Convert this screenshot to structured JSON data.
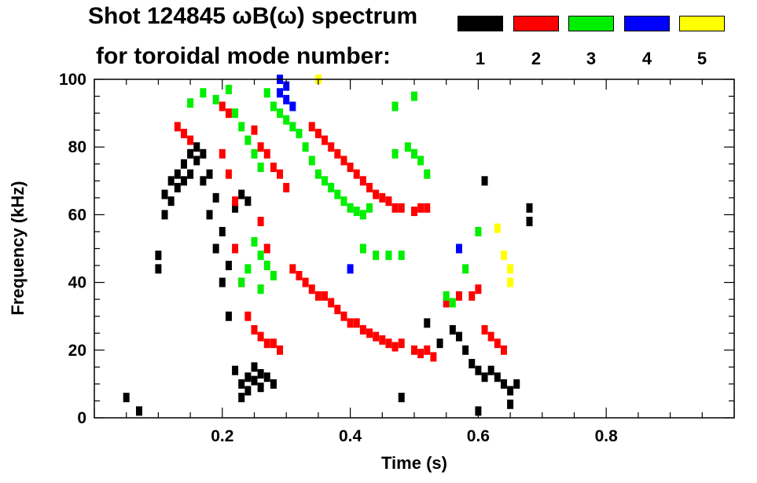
{
  "title": {
    "line1": "Shot 124845 ωB(ω) spectrum",
    "line2": "for toroidal mode number:"
  },
  "legend": [
    {
      "label": "1",
      "color": "#000000"
    },
    {
      "label": "2",
      "color": "#ff0000"
    },
    {
      "label": "3",
      "color": "#00ee00"
    },
    {
      "label": "4",
      "color": "#0000ff"
    },
    {
      "label": "5",
      "color": "#ffff00"
    }
  ],
  "chart_data": {
    "type": "scatter",
    "title": "Shot 124845 ωB(ω) spectrum",
    "xlabel": "Time (s)",
    "ylabel": "Frequency (kHz)",
    "xlim": [
      0.0,
      1.0
    ],
    "ylim": [
      0,
      100
    ],
    "xticks": [
      "0.2",
      "0.4",
      "0.6",
      "0.8"
    ],
    "yticks": [
      "0",
      "20",
      "40",
      "60",
      "80",
      "100"
    ],
    "series": [
      {
        "name": "1",
        "color": "#000000",
        "points": [
          [
            0.1,
            48
          ],
          [
            0.1,
            44
          ],
          [
            0.11,
            66
          ],
          [
            0.11,
            60
          ],
          [
            0.12,
            70
          ],
          [
            0.12,
            64
          ],
          [
            0.13,
            68
          ],
          [
            0.13,
            72
          ],
          [
            0.14,
            75
          ],
          [
            0.14,
            70
          ],
          [
            0.15,
            78
          ],
          [
            0.15,
            72
          ],
          [
            0.16,
            80
          ],
          [
            0.16,
            76
          ],
          [
            0.17,
            78
          ],
          [
            0.17,
            70
          ],
          [
            0.18,
            72
          ],
          [
            0.18,
            60
          ],
          [
            0.19,
            65
          ],
          [
            0.19,
            50
          ],
          [
            0.2,
            55
          ],
          [
            0.2,
            40
          ],
          [
            0.21,
            45
          ],
          [
            0.21,
            30
          ],
          [
            0.22,
            62
          ],
          [
            0.23,
            66
          ],
          [
            0.24,
            64
          ],
          [
            0.22,
            14
          ],
          [
            0.23,
            10
          ],
          [
            0.23,
            6
          ],
          [
            0.24,
            12
          ],
          [
            0.24,
            8
          ],
          [
            0.25,
            15
          ],
          [
            0.25,
            11
          ],
          [
            0.26,
            13
          ],
          [
            0.26,
            9
          ],
          [
            0.27,
            12
          ],
          [
            0.28,
            10
          ],
          [
            0.05,
            6
          ],
          [
            0.07,
            2
          ],
          [
            0.48,
            6
          ],
          [
            0.52,
            28
          ],
          [
            0.54,
            22
          ],
          [
            0.56,
            26
          ],
          [
            0.57,
            24
          ],
          [
            0.58,
            20
          ],
          [
            0.59,
            16
          ],
          [
            0.6,
            14
          ],
          [
            0.61,
            12
          ],
          [
            0.62,
            14
          ],
          [
            0.63,
            12
          ],
          [
            0.64,
            10
          ],
          [
            0.65,
            8
          ],
          [
            0.66,
            10
          ],
          [
            0.6,
            2
          ],
          [
            0.65,
            4
          ],
          [
            0.68,
            62
          ],
          [
            0.68,
            58
          ],
          [
            0.61,
            70
          ]
        ]
      },
      {
        "name": "2",
        "color": "#ff0000",
        "points": [
          [
            0.13,
            86
          ],
          [
            0.14,
            84
          ],
          [
            0.15,
            82
          ],
          [
            0.2,
            92
          ],
          [
            0.21,
            90
          ],
          [
            0.2,
            78
          ],
          [
            0.21,
            72
          ],
          [
            0.22,
            64
          ],
          [
            0.22,
            50
          ],
          [
            0.23,
            40
          ],
          [
            0.24,
            30
          ],
          [
            0.25,
            26
          ],
          [
            0.26,
            24
          ],
          [
            0.27,
            22
          ],
          [
            0.28,
            22
          ],
          [
            0.29,
            20
          ],
          [
            0.25,
            85
          ],
          [
            0.26,
            80
          ],
          [
            0.27,
            78
          ],
          [
            0.28,
            74
          ],
          [
            0.29,
            72
          ],
          [
            0.3,
            68
          ],
          [
            0.26,
            58
          ],
          [
            0.27,
            50
          ],
          [
            0.31,
            44
          ],
          [
            0.32,
            42
          ],
          [
            0.33,
            40
          ],
          [
            0.34,
            38
          ],
          [
            0.35,
            36
          ],
          [
            0.36,
            36
          ],
          [
            0.37,
            34
          ],
          [
            0.38,
            32
          ],
          [
            0.39,
            30
          ],
          [
            0.4,
            28
          ],
          [
            0.41,
            28
          ],
          [
            0.42,
            26
          ],
          [
            0.43,
            25
          ],
          [
            0.44,
            24
          ],
          [
            0.45,
            23
          ],
          [
            0.46,
            22
          ],
          [
            0.47,
            21
          ],
          [
            0.48,
            22
          ],
          [
            0.5,
            20
          ],
          [
            0.51,
            19
          ],
          [
            0.52,
            20
          ],
          [
            0.53,
            18
          ],
          [
            0.34,
            86
          ],
          [
            0.35,
            84
          ],
          [
            0.36,
            82
          ],
          [
            0.37,
            80
          ],
          [
            0.38,
            78
          ],
          [
            0.39,
            76
          ],
          [
            0.4,
            74
          ],
          [
            0.41,
            72
          ],
          [
            0.42,
            70
          ],
          [
            0.43,
            68
          ],
          [
            0.44,
            66
          ],
          [
            0.45,
            65
          ],
          [
            0.46,
            64
          ],
          [
            0.47,
            62
          ],
          [
            0.48,
            62
          ],
          [
            0.5,
            61
          ],
          [
            0.51,
            62
          ],
          [
            0.52,
            62
          ],
          [
            0.55,
            34
          ],
          [
            0.57,
            36
          ],
          [
            0.59,
            36
          ],
          [
            0.61,
            26
          ],
          [
            0.62,
            24
          ],
          [
            0.63,
            22
          ],
          [
            0.64,
            20
          ],
          [
            0.6,
            38
          ]
        ]
      },
      {
        "name": "3",
        "color": "#00ee00",
        "points": [
          [
            0.15,
            93
          ],
          [
            0.17,
            96
          ],
          [
            0.19,
            94
          ],
          [
            0.21,
            97
          ],
          [
            0.22,
            90
          ],
          [
            0.23,
            86
          ],
          [
            0.24,
            82
          ],
          [
            0.25,
            78
          ],
          [
            0.26,
            74
          ],
          [
            0.27,
            96
          ],
          [
            0.28,
            92
          ],
          [
            0.29,
            90
          ],
          [
            0.3,
            88
          ],
          [
            0.31,
            86
          ],
          [
            0.32,
            84
          ],
          [
            0.33,
            80
          ],
          [
            0.34,
            76
          ],
          [
            0.35,
            72
          ],
          [
            0.36,
            70
          ],
          [
            0.37,
            68
          ],
          [
            0.38,
            66
          ],
          [
            0.39,
            64
          ],
          [
            0.4,
            62
          ],
          [
            0.41,
            61
          ],
          [
            0.42,
            60
          ],
          [
            0.43,
            62
          ],
          [
            0.25,
            52
          ],
          [
            0.26,
            48
          ],
          [
            0.27,
            45
          ],
          [
            0.28,
            42
          ],
          [
            0.24,
            44
          ],
          [
            0.23,
            40
          ],
          [
            0.26,
            38
          ],
          [
            0.42,
            50
          ],
          [
            0.44,
            48
          ],
          [
            0.46,
            48
          ],
          [
            0.48,
            48
          ],
          [
            0.5,
            78
          ],
          [
            0.51,
            76
          ],
          [
            0.52,
            72
          ],
          [
            0.47,
            78
          ],
          [
            0.49,
            80
          ],
          [
            0.55,
            36
          ],
          [
            0.56,
            34
          ],
          [
            0.58,
            44
          ],
          [
            0.6,
            55
          ],
          [
            0.47,
            92
          ],
          [
            0.5,
            95
          ]
        ]
      },
      {
        "name": "4",
        "color": "#0000ff",
        "points": [
          [
            0.29,
            96
          ],
          [
            0.3,
            94
          ],
          [
            0.31,
            92
          ],
          [
            0.3,
            98
          ],
          [
            0.29,
            100
          ],
          [
            0.4,
            44
          ],
          [
            0.57,
            50
          ]
        ]
      },
      {
        "name": "5",
        "color": "#ffff00",
        "points": [
          [
            0.35,
            100
          ],
          [
            0.63,
            56
          ],
          [
            0.64,
            48
          ],
          [
            0.65,
            44
          ],
          [
            0.65,
            40
          ]
        ]
      }
    ]
  }
}
